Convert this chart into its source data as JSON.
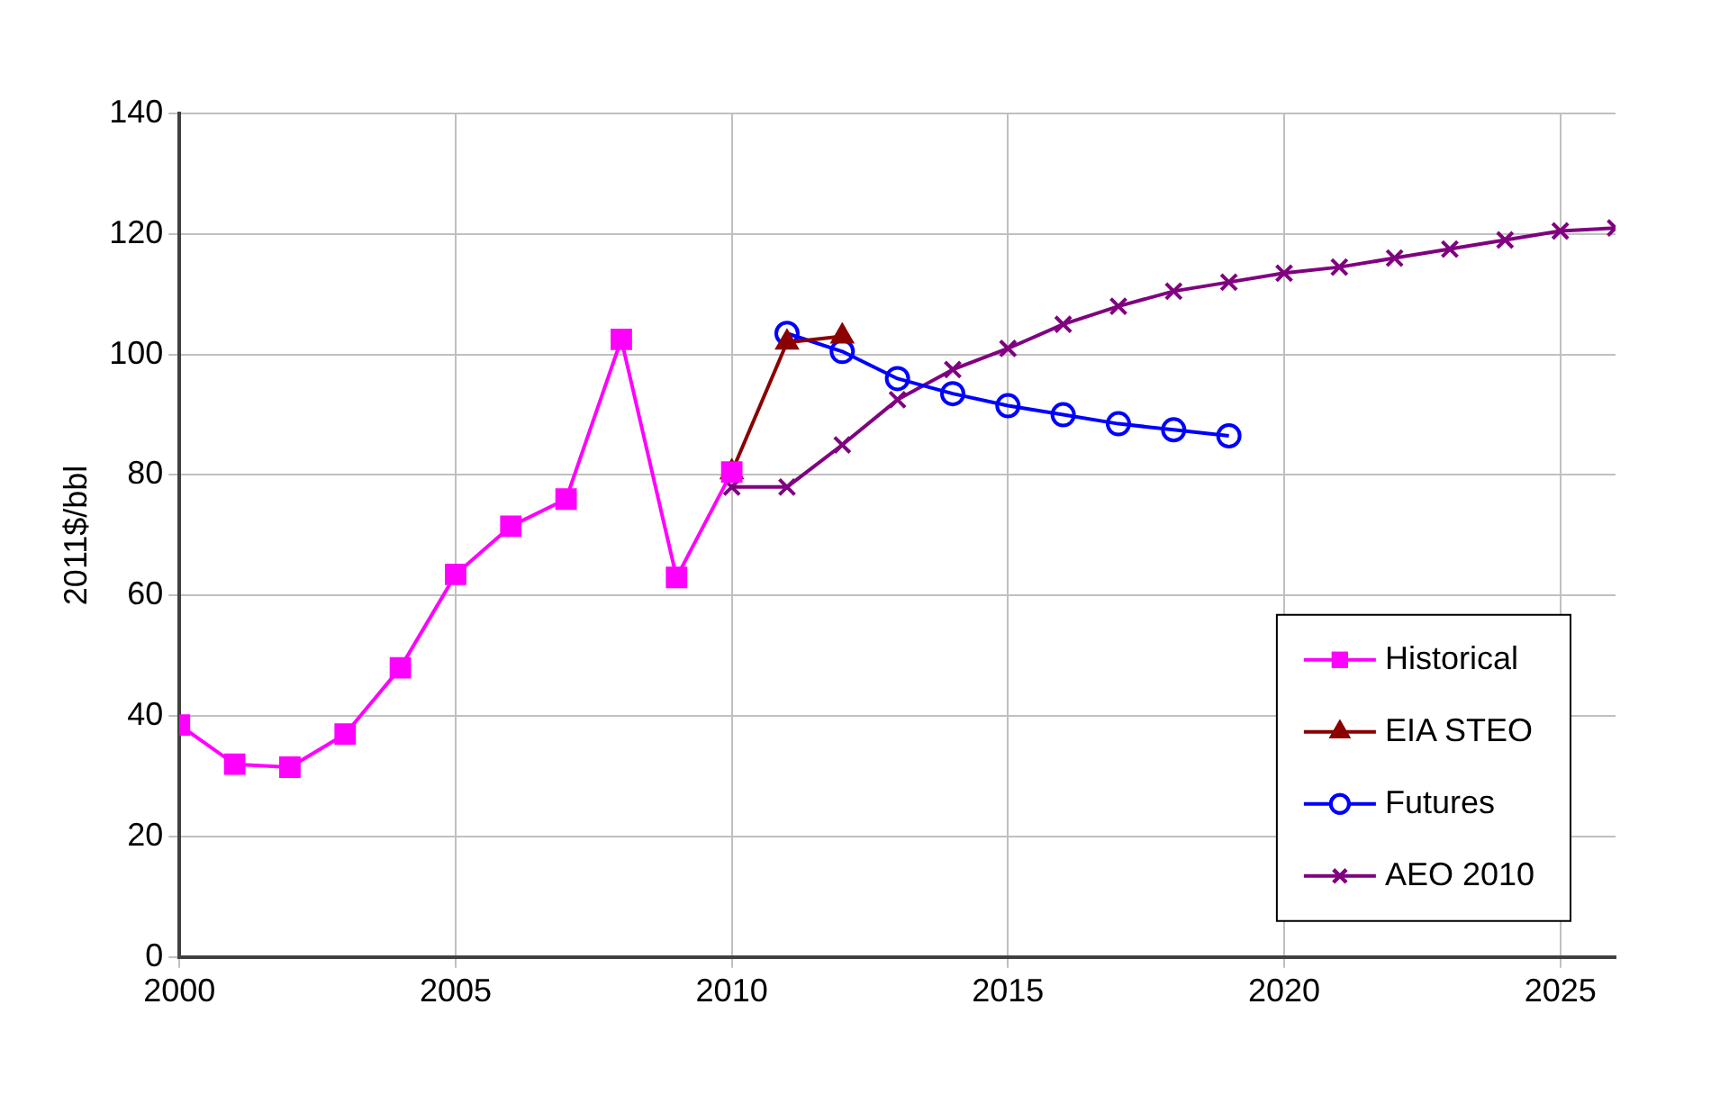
{
  "chart_data": {
    "type": "line",
    "ylabel": "2011$/bbl",
    "xlim": [
      2000,
      2026
    ],
    "xticks": [
      2000,
      2005,
      2010,
      2015,
      2020,
      2025
    ],
    "ylim": [
      0,
      140
    ],
    "yticks": [
      0,
      20,
      40,
      60,
      80,
      100,
      120,
      140
    ],
    "grid": true,
    "legend": "bottom right",
    "line_style": "solid",
    "series": [
      {
        "name": "Historical",
        "color": "#ff00ff",
        "marker": "square",
        "x": [
          2000,
          2001,
          2002,
          2003,
          2004,
          2005,
          2006,
          2007,
          2008,
          2009,
          2010
        ],
        "values": [
          38.5,
          32,
          31.5,
          37,
          48,
          63.5,
          71.5,
          76,
          102.5,
          63,
          80.5
        ]
      },
      {
        "name": "EIA STEO",
        "color": "#8b0000",
        "marker": "triangle",
        "x": [
          2010,
          2011,
          2012
        ],
        "values": [
          80.5,
          102,
          103
        ]
      },
      {
        "name": "Futures",
        "color": "#0000ff",
        "marker": "circle",
        "x": [
          2011,
          2012,
          2013,
          2014,
          2015,
          2016,
          2017,
          2018,
          2019
        ],
        "values": [
          103.5,
          100.5,
          96,
          93.5,
          91.5,
          90,
          88.5,
          87.5,
          86.5
        ]
      },
      {
        "name": "AEO 2010",
        "color": "#800080",
        "marker": "cross",
        "x": [
          2010,
          2011,
          2012,
          2013,
          2014,
          2015,
          2016,
          2017,
          2018,
          2019,
          2020,
          2021,
          2022,
          2023,
          2024,
          2025,
          2026
        ],
        "values": [
          78,
          78,
          85,
          92.5,
          97.5,
          101,
          105,
          108,
          110.5,
          112,
          113.5,
          114.5,
          116,
          117.5,
          119,
          120.5,
          121
        ]
      }
    ]
  }
}
